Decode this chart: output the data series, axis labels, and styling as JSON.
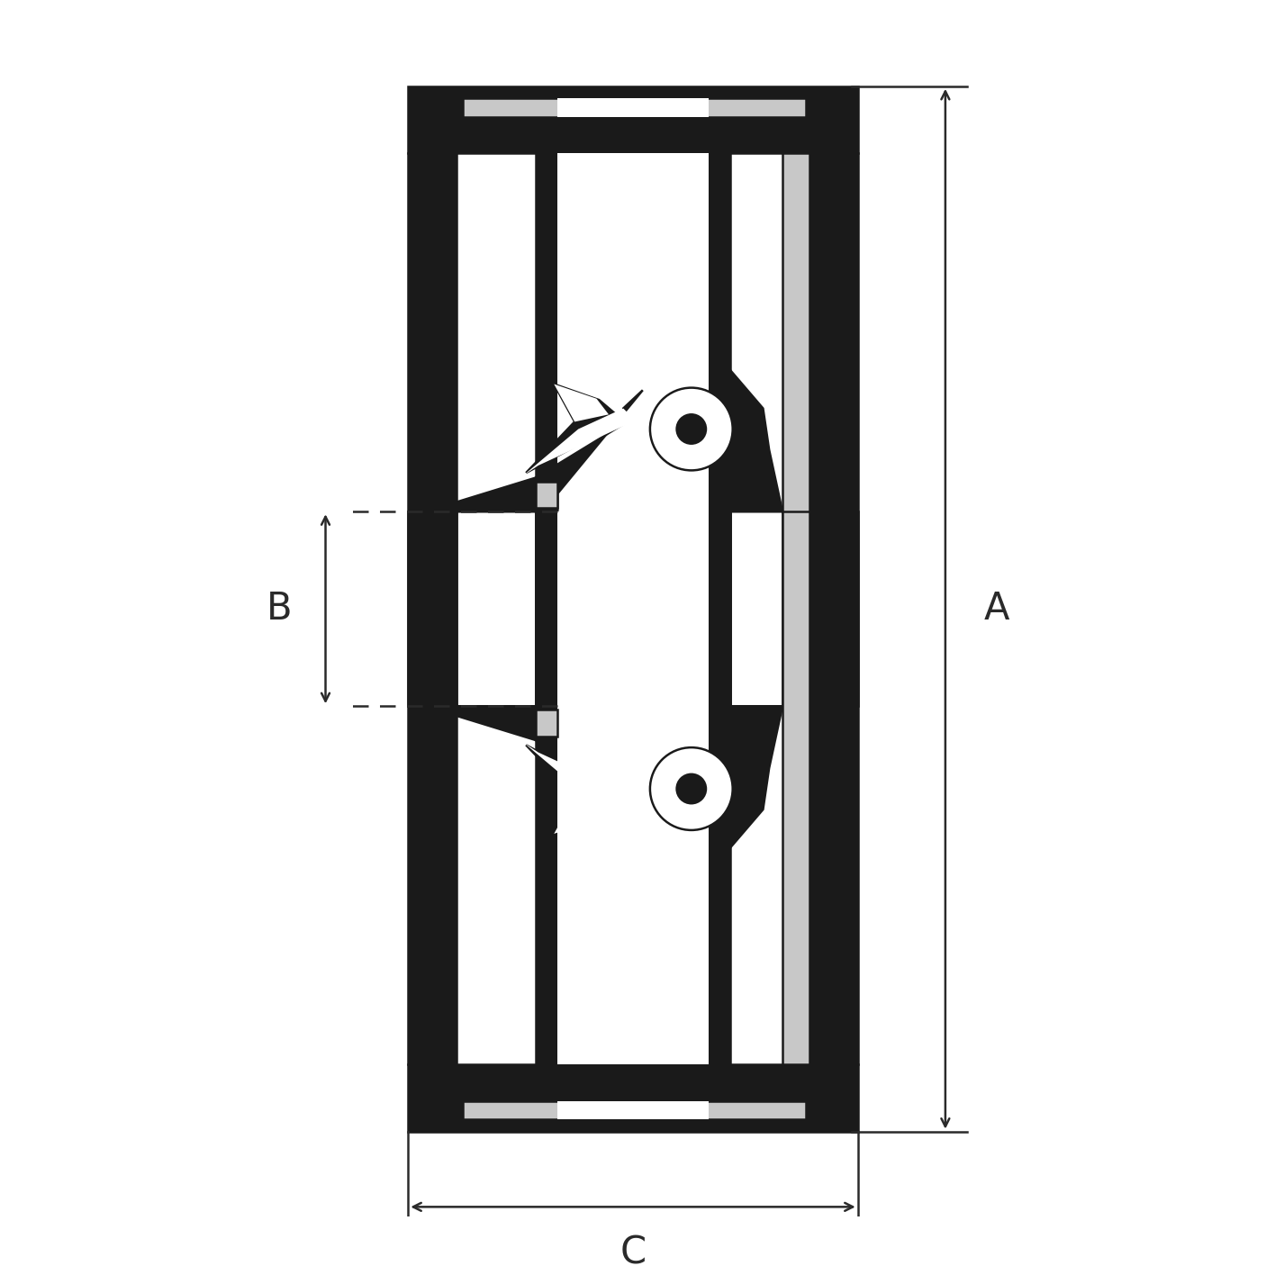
{
  "bg_color": "#ffffff",
  "fc_black": "#1a1a1a",
  "fc_gray": "#c8c8c8",
  "fc_white": "#ffffff",
  "dim_color": "#2a2a2a",
  "label_A": "A",
  "label_B": "B",
  "label_C": "C",
  "figsize": [
    14.06,
    14.06
  ],
  "dpi": 100,
  "lw": 1.8,
  "font_size": 30
}
